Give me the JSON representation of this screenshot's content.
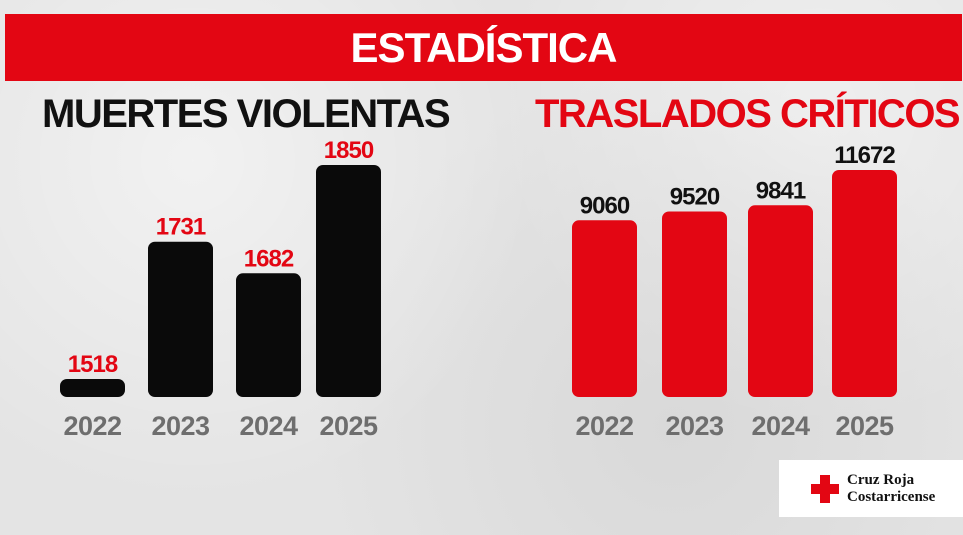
{
  "header": {
    "title": "ESTADÍSTICA"
  },
  "colors": {
    "red": "#e30613",
    "black": "#0a0a0a",
    "year_gray": "#6e6e6e",
    "value_black": "#111111"
  },
  "chart_data": [
    {
      "type": "bar",
      "title": "MUERTES VIOLENTAS",
      "categories": [
        "2022",
        "2023",
        "2024",
        "2025"
      ],
      "values": [
        1518,
        1731,
        1682,
        1850
      ],
      "bar_color": "#0a0a0a",
      "label_color": "#e30613"
    },
    {
      "type": "bar",
      "title": "TRASLADOS CRÍTICOS",
      "categories": [
        "2022",
        "2023",
        "2024",
        "2025"
      ],
      "values": [
        9060,
        9520,
        9841,
        11672
      ],
      "bar_color": "#e30613",
      "label_color": "#111111"
    }
  ],
  "logo": {
    "line1": "Cruz Roja",
    "line2": "Costarricense",
    "icon": "red-cross-icon"
  }
}
